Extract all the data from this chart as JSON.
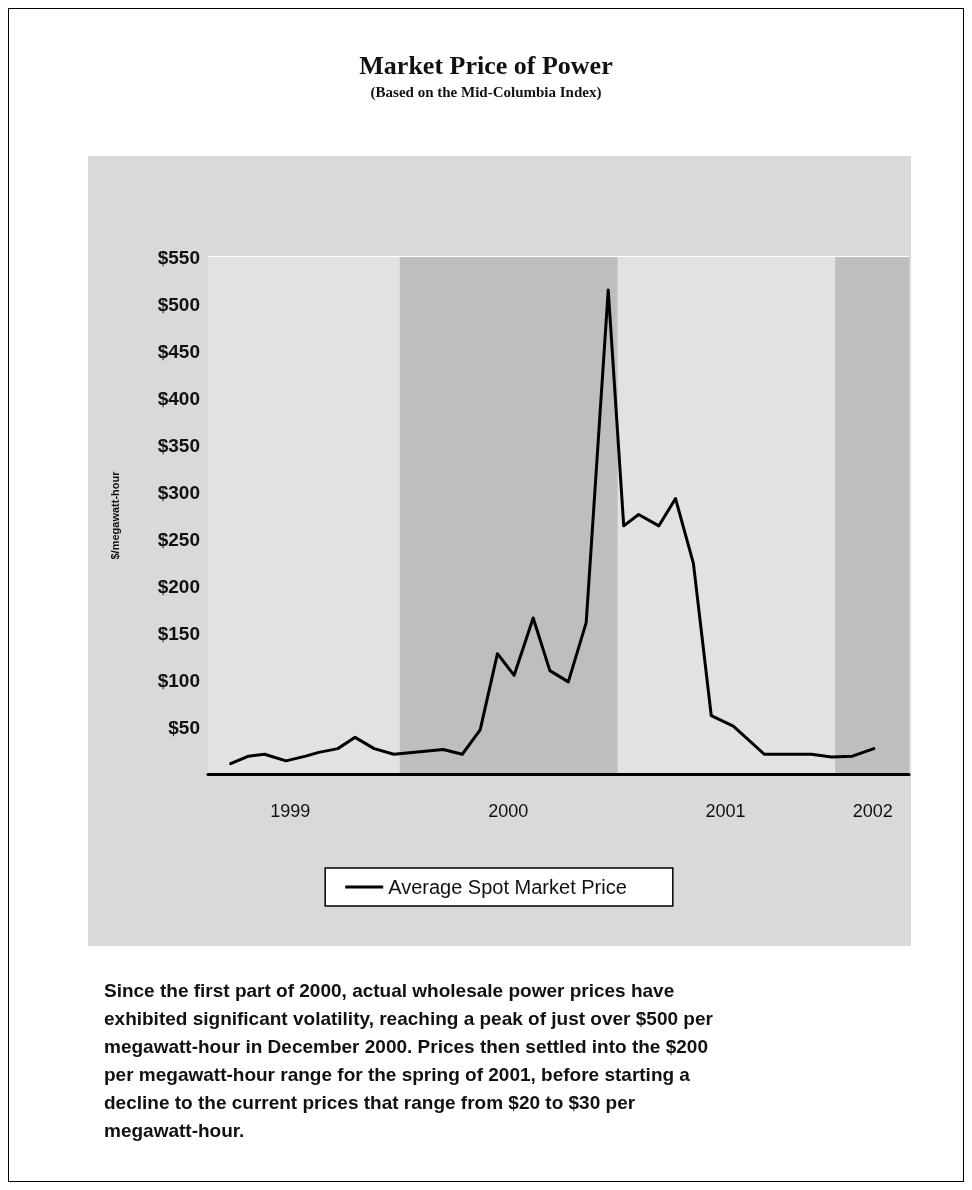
{
  "chart_data": {
    "type": "line",
    "title": "Market Price of Power",
    "subtitle": "(Based on the Mid-Columbia Index)",
    "ylabel": "$/megawatt-hour",
    "annotations": [
      "Since the first part of 2000, actual wholesale power prices have exhibited significant volatility, reaching a peak of just over $500 per megawatt-hour in December 2000. Prices then settled into the $200 per megawatt-hour range for the spring of 2001, before starting a decline to the current prices that range from $20 to $30 per megawatt-hour."
    ],
    "x": [
      "1999-03-23",
      "1999-04-22",
      "1999-05-19",
      "1999-06-24",
      "1999-07-27",
      "1999-08-18",
      "1999-09-19",
      "1999-10-18",
      "1999-11-19",
      "1999-12-22",
      "2000-03-14",
      "2000-04-15",
      "2000-05-15",
      "2000-06-13",
      "2000-07-11",
      "2000-08-12",
      "2000-09-09",
      "2000-10-10",
      "2000-11-09",
      "2000-12-16",
      "2001-01-11",
      "2001-02-05",
      "2001-03-11",
      "2001-04-08",
      "2001-05-08",
      "2001-06-07",
      "2001-07-14",
      "2001-09-04",
      "2001-11-22",
      "2001-12-26",
      "2002-01-30",
      "2002-03-07"
    ],
    "series": [
      {
        "name": "Average Spot Market Price",
        "color": "#000000",
        "values": [
          11,
          19,
          21,
          14,
          19,
          23,
          27,
          39,
          27,
          21,
          26,
          21,
          47,
          128,
          105,
          166,
          110,
          98,
          161,
          515,
          264,
          276,
          264,
          293,
          224,
          62,
          51,
          21,
          21,
          18,
          19,
          27
        ]
      }
    ],
    "xlim": [
      "1999-02-13",
      "2002-05-05"
    ],
    "xticks": [
      {
        "value": "1999-07-01",
        "label": "1999"
      },
      {
        "value": "2000-07-01",
        "label": "2000"
      },
      {
        "value": "2001-07-01",
        "label": "2001"
      },
      {
        "value": "2002-03-05",
        "label": "2002"
      }
    ],
    "ylim": [
      0,
      550
    ],
    "yticks": [
      {
        "value": 50,
        "label": "$50"
      },
      {
        "value": 100,
        "label": "$100"
      },
      {
        "value": 150,
        "label": "$150"
      },
      {
        "value": 200,
        "label": "$200"
      },
      {
        "value": 250,
        "label": "$250"
      },
      {
        "value": 300,
        "label": "$300"
      },
      {
        "value": 350,
        "label": "$350"
      },
      {
        "value": 400,
        "label": "$400"
      },
      {
        "value": 450,
        "label": "$450"
      },
      {
        "value": 500,
        "label": "$500"
      },
      {
        "value": 550,
        "label": "$550"
      }
    ],
    "bands": [
      {
        "axis": "x",
        "from": "1999-02-13",
        "to": "2000-01-01",
        "color": "#e2e2e2"
      },
      {
        "axis": "x",
        "from": "2000-01-01",
        "to": "2001-01-01",
        "color": "#bebebe"
      },
      {
        "axis": "x",
        "from": "2001-01-01",
        "to": "2002-01-01",
        "color": "#e2e2e2"
      },
      {
        "axis": "x",
        "from": "2002-01-01",
        "to": "2002-05-05",
        "color": "#bebebe"
      }
    ],
    "grid": "y",
    "legend": "bottom",
    "marker": "none",
    "line_style": "solid"
  }
}
